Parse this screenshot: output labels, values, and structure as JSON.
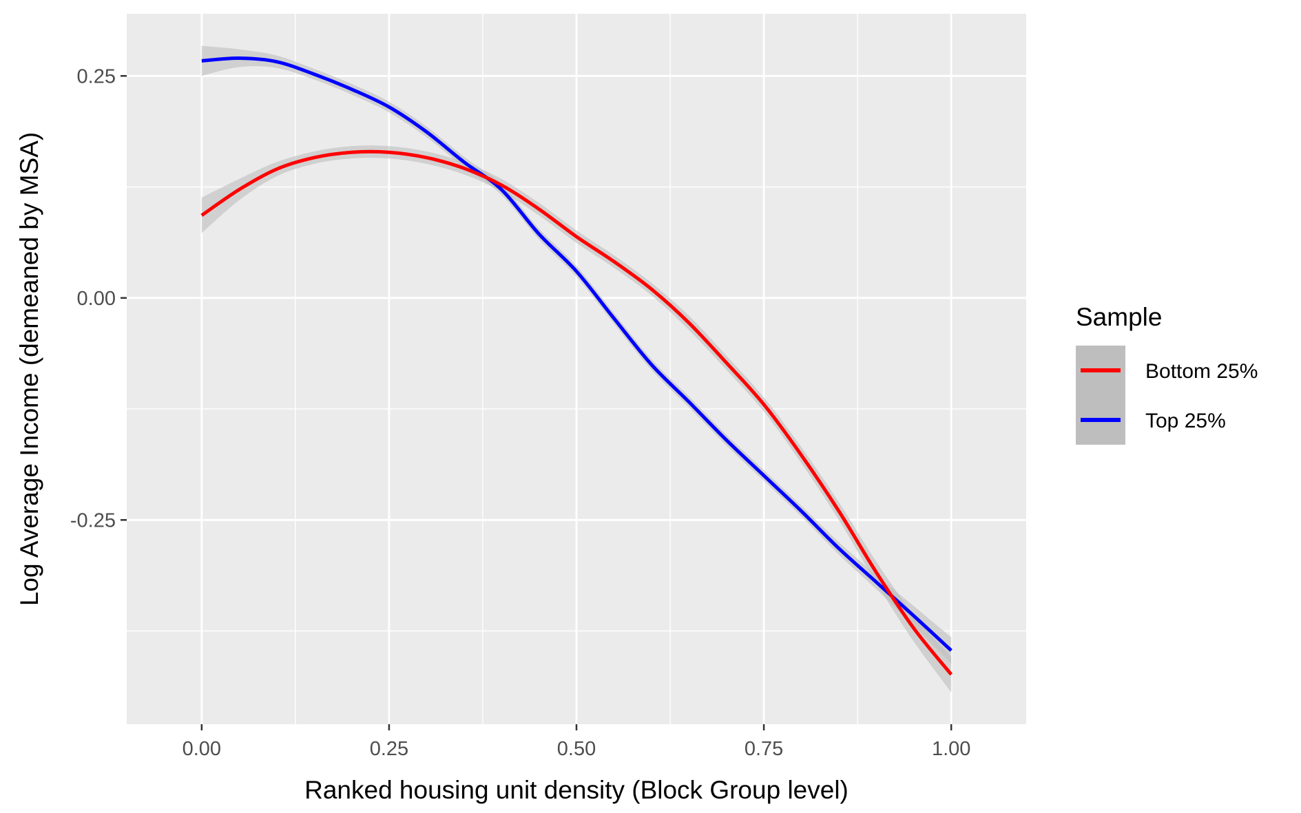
{
  "chart_data": {
    "type": "line",
    "title": "",
    "xlabel": "Ranked housing unit density (Block Group level)",
    "ylabel": "Log Average Income (demeaned by MSA)",
    "xlim": [
      -0.1,
      1.1
    ],
    "ylim": [
      -0.48,
      0.32
    ],
    "x_ticks": [
      0.0,
      0.25,
      0.5,
      0.75,
      1.0
    ],
    "x_tick_labels": [
      "0.00",
      "0.25",
      "0.50",
      "0.75",
      "1.00"
    ],
    "y_ticks": [
      0.25,
      0.0,
      -0.25
    ],
    "y_tick_labels": [
      "0.25",
      "0.00",
      "-0.25"
    ],
    "grid": true,
    "panel_background": "#EBEBEB",
    "grid_color": "#FFFFFF",
    "ribbon_color": "#BEBEBE",
    "legend": {
      "title": "Sample",
      "position": "right",
      "entries": [
        "Bottom 25%",
        "Top 25%"
      ]
    },
    "series": [
      {
        "name": "Bottom 25%",
        "color": "#FF0000",
        "x": [
          0.0,
          0.05,
          0.1,
          0.15,
          0.2,
          0.25,
          0.3,
          0.35,
          0.4,
          0.45,
          0.5,
          0.55,
          0.6,
          0.65,
          0.7,
          0.75,
          0.8,
          0.85,
          0.9,
          0.95,
          1.0
        ],
        "y": [
          0.093,
          0.122,
          0.145,
          0.158,
          0.164,
          0.164,
          0.158,
          0.146,
          0.127,
          0.1,
          0.069,
          0.041,
          0.01,
          -0.028,
          -0.073,
          -0.12,
          -0.177,
          -0.24,
          -0.309,
          -0.372,
          -0.424
        ],
        "band_halfwidth": [
          0.02,
          0.012,
          0.008,
          0.007,
          0.007,
          0.007,
          0.007,
          0.007,
          0.007,
          0.007,
          0.007,
          0.007,
          0.007,
          0.008,
          0.008,
          0.008,
          0.009,
          0.01,
          0.012,
          0.015,
          0.02
        ]
      },
      {
        "name": "Top 25%",
        "color": "#0000FF",
        "x": [
          0.0,
          0.05,
          0.1,
          0.15,
          0.2,
          0.25,
          0.3,
          0.35,
          0.4,
          0.45,
          0.5,
          0.55,
          0.6,
          0.65,
          0.7,
          0.75,
          0.8,
          0.85,
          0.9,
          0.95,
          1.0
        ],
        "y": [
          0.267,
          0.27,
          0.266,
          0.252,
          0.235,
          0.215,
          0.187,
          0.153,
          0.122,
          0.072,
          0.03,
          -0.023,
          -0.075,
          -0.117,
          -0.16,
          -0.2,
          -0.24,
          -0.282,
          -0.32,
          -0.358,
          -0.397
        ],
        "band_halfwidth": [
          0.017,
          0.01,
          0.007,
          0.006,
          0.006,
          0.006,
          0.006,
          0.006,
          0.006,
          0.006,
          0.006,
          0.006,
          0.006,
          0.006,
          0.006,
          0.006,
          0.006,
          0.007,
          0.008,
          0.011,
          0.015
        ]
      }
    ]
  }
}
